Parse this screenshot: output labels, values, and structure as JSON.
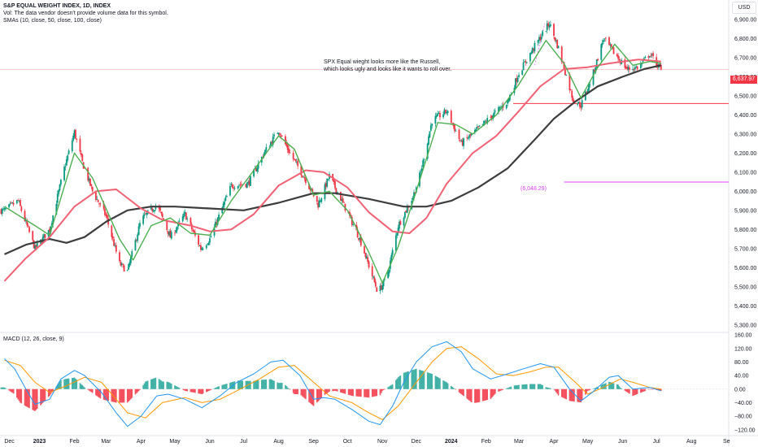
{
  "header": {
    "title": "S&P EQUAL WEIGHT INDEX, 1D, INDEX",
    "vol_note": "Vol: The data vendor doesn't provide volume data for this symbol.",
    "sma_label": "SMAs (10, close, 50, close, 100, close)"
  },
  "currency": "USD",
  "annotation": {
    "line1": "SPX Equal wieght looks more like the Russell,",
    "line2": "which looks ugly and looks like it wants to roll over."
  },
  "last_price_tag": "6,637.97",
  "level_tag": "(6,048.29)",
  "macd_label": "MACD (12, 26, close, 9)",
  "colors": {
    "up": "#089981",
    "down": "#f23645",
    "sma10": "#4caf50",
    "sma50": "#f06274",
    "sma100": "#3d3d3d",
    "macd": "#2196f3",
    "signal": "#ff9800",
    "hist_pos": "#26a69a",
    "hist_neg": "#f23645",
    "level_line": "#e040fb",
    "support_line": "#f23645",
    "price_tag_bg": "#f23645"
  },
  "chart_data": [
    {
      "type": "candlestick",
      "title": "S&P EQUAL WEIGHT INDEX, 1D, INDEX",
      "x_ticks": [
        "Dec",
        "2023",
        "Feb",
        "Mar",
        "Apr",
        "May",
        "Jun",
        "Jul",
        "Aug",
        "Sep",
        "Oct",
        "Nov",
        "Dec",
        "2024",
        "Feb",
        "Mar",
        "Apr",
        "May",
        "Jun",
        "Jul",
        "Aug",
        "Se"
      ],
      "y_ticks": [
        "6,900.00",
        "6,800.00",
        "6,700.00",
        "6,600.00",
        "6,500.00",
        "6,400.00",
        "6,300.00",
        "6,200.00",
        "6,100.00",
        "6,000.00",
        "5,900.00",
        "5,800.00",
        "5,700.00",
        "5,600.00",
        "5,500.00",
        "5,400.00",
        "5,300.00"
      ],
      "ylim": [
        5265,
        6985
      ],
      "close_path": [
        [
          "2022-12-01",
          5900
        ],
        [
          "2022-12-13",
          5950
        ],
        [
          "2022-12-28",
          5700
        ],
        [
          "2023-01-10",
          5800
        ],
        [
          "2023-01-23",
          6120
        ],
        [
          "2023-02-01",
          6310
        ],
        [
          "2023-02-08",
          6150
        ],
        [
          "2023-02-17",
          6000
        ],
        [
          "2023-03-01",
          5870
        ],
        [
          "2023-03-13",
          5620
        ],
        [
          "2023-03-20",
          5580
        ],
        [
          "2023-04-01",
          5850
        ],
        [
          "2023-04-15",
          5930
        ],
        [
          "2023-04-27",
          5760
        ],
        [
          "2023-05-10",
          5880
        ],
        [
          "2023-05-24",
          5700
        ],
        [
          "2023-06-01",
          5750
        ],
        [
          "2023-06-20",
          6030
        ],
        [
          "2023-07-05",
          6040
        ],
        [
          "2023-07-20",
          6210
        ],
        [
          "2023-08-01",
          6320
        ],
        [
          "2023-08-10",
          6210
        ],
        [
          "2023-08-25",
          6060
        ],
        [
          "2023-09-05",
          5930
        ],
        [
          "2023-09-15",
          6080
        ],
        [
          "2023-10-01",
          5890
        ],
        [
          "2023-10-12",
          5750
        ],
        [
          "2023-10-20",
          5610
        ],
        [
          "2023-10-28",
          5470
        ],
        [
          "2023-11-05",
          5550
        ],
        [
          "2023-11-15",
          5820
        ],
        [
          "2023-11-28",
          5970
        ],
        [
          "2023-12-05",
          6100
        ],
        [
          "2023-12-15",
          6370
        ],
        [
          "2023-12-28",
          6420
        ],
        [
          "2024-01-10",
          6250
        ],
        [
          "2024-01-22",
          6310
        ],
        [
          "2024-02-05",
          6390
        ],
        [
          "2024-02-20",
          6470
        ],
        [
          "2024-03-01",
          6620
        ],
        [
          "2024-03-15",
          6760
        ],
        [
          "2024-03-28",
          6880
        ],
        [
          "2024-04-05",
          6750
        ],
        [
          "2024-04-18",
          6480
        ],
        [
          "2024-04-25",
          6450
        ],
        [
          "2024-05-05",
          6600
        ],
        [
          "2024-05-15",
          6800
        ],
        [
          "2024-05-25",
          6720
        ],
        [
          "2024-06-05",
          6640
        ],
        [
          "2024-06-15",
          6650
        ],
        [
          "2024-06-25",
          6720
        ],
        [
          "2024-07-05",
          6638
        ]
      ],
      "sma10": [
        [
          "2022-12-01",
          5920
        ],
        [
          "2022-12-28",
          5820
        ],
        [
          "2023-01-10",
          5770
        ],
        [
          "2023-02-01",
          6200
        ],
        [
          "2023-02-17",
          6070
        ],
        [
          "2023-03-13",
          5750
        ],
        [
          "2023-03-25",
          5640
        ],
        [
          "2023-04-10",
          5820
        ],
        [
          "2023-04-27",
          5860
        ],
        [
          "2023-05-15",
          5780
        ],
        [
          "2023-06-01",
          5770
        ],
        [
          "2023-06-20",
          5950
        ],
        [
          "2023-07-10",
          6110
        ],
        [
          "2023-08-01",
          6290
        ],
        [
          "2023-08-15",
          6220
        ],
        [
          "2023-09-01",
          5980
        ],
        [
          "2023-09-15",
          6000
        ],
        [
          "2023-10-01",
          5900
        ],
        [
          "2023-10-20",
          5680
        ],
        [
          "2023-11-01",
          5520
        ],
        [
          "2023-11-15",
          5710
        ],
        [
          "2023-12-01",
          6000
        ],
        [
          "2023-12-20",
          6360
        ],
        [
          "2024-01-05",
          6350
        ],
        [
          "2024-01-20",
          6300
        ],
        [
          "2024-02-10",
          6400
        ],
        [
          "2024-03-01",
          6560
        ],
        [
          "2024-03-25",
          6790
        ],
        [
          "2024-04-10",
          6670
        ],
        [
          "2024-04-25",
          6490
        ],
        [
          "2024-05-10",
          6650
        ],
        [
          "2024-05-25",
          6770
        ],
        [
          "2024-06-10",
          6660
        ],
        [
          "2024-06-25",
          6680
        ],
        [
          "2024-07-05",
          6670
        ]
      ],
      "sma50": [
        [
          "2022-12-01",
          5530
        ],
        [
          "2022-12-20",
          5650
        ],
        [
          "2023-01-10",
          5760
        ],
        [
          "2023-02-01",
          5920
        ],
        [
          "2023-02-20",
          6000
        ],
        [
          "2023-03-10",
          6010
        ],
        [
          "2023-04-01",
          5910
        ],
        [
          "2023-04-20",
          5850
        ],
        [
          "2023-05-15",
          5820
        ],
        [
          "2023-06-01",
          5790
        ],
        [
          "2023-06-20",
          5800
        ],
        [
          "2023-07-10",
          5880
        ],
        [
          "2023-08-01",
          6030
        ],
        [
          "2023-08-25",
          6110
        ],
        [
          "2023-09-10",
          6100
        ],
        [
          "2023-10-01",
          6020
        ],
        [
          "2023-10-20",
          5890
        ],
        [
          "2023-11-10",
          5790
        ],
        [
          "2023-11-25",
          5780
        ],
        [
          "2023-12-10",
          5860
        ],
        [
          "2023-12-28",
          6040
        ],
        [
          "2024-01-20",
          6200
        ],
        [
          "2024-02-10",
          6290
        ],
        [
          "2024-03-01",
          6420
        ],
        [
          "2024-03-20",
          6550
        ],
        [
          "2024-04-10",
          6640
        ],
        [
          "2024-05-01",
          6650
        ],
        [
          "2024-05-20",
          6670
        ],
        [
          "2024-06-15",
          6690
        ],
        [
          "2024-07-05",
          6680
        ]
      ],
      "sma100": [
        [
          "2022-12-01",
          5670
        ],
        [
          "2022-12-20",
          5720
        ],
        [
          "2023-01-10",
          5750
        ],
        [
          "2023-01-25",
          5730
        ],
        [
          "2023-02-10",
          5760
        ],
        [
          "2023-03-01",
          5840
        ],
        [
          "2023-03-20",
          5900
        ],
        [
          "2023-04-10",
          5920
        ],
        [
          "2023-05-01",
          5920
        ],
        [
          "2023-06-01",
          5910
        ],
        [
          "2023-07-01",
          5900
        ],
        [
          "2023-08-01",
          5940
        ],
        [
          "2023-09-01",
          5990
        ],
        [
          "2023-09-20",
          5990
        ],
        [
          "2023-10-20",
          5960
        ],
        [
          "2023-11-20",
          5920
        ],
        [
          "2023-12-10",
          5920
        ],
        [
          "2024-01-01",
          5950
        ],
        [
          "2024-01-25",
          6020
        ],
        [
          "2024-02-20",
          6120
        ],
        [
          "2024-03-15",
          6270
        ],
        [
          "2024-04-01",
          6380
        ],
        [
          "2024-04-20",
          6470
        ],
        [
          "2024-05-10",
          6550
        ],
        [
          "2024-06-01",
          6600
        ],
        [
          "2024-06-20",
          6640
        ],
        [
          "2024-07-05",
          6660
        ]
      ],
      "last_close": 6637.97,
      "horizontal_levels": [
        6048.29,
        6460
      ]
    },
    {
      "type": "line",
      "title": "MACD (12, 26, close, 9)",
      "y_ticks": [
        "160.00",
        "120.00",
        "80.00",
        "40.00",
        "0.00",
        "−40.00",
        "−80.00",
        "−120.00"
      ],
      "ylim": [
        -135,
        165
      ],
      "series": [
        {
          "name": "MACD",
          "points": [
            [
              "2022-12-01",
              90
            ],
            [
              "2022-12-10",
              60
            ],
            [
              "2022-12-20",
              0
            ],
            [
              "2022-12-28",
              -45
            ],
            [
              "2023-01-10",
              -30
            ],
            [
              "2023-01-20",
              30
            ],
            [
              "2023-02-01",
              55
            ],
            [
              "2023-02-10",
              40
            ],
            [
              "2023-02-25",
              -10
            ],
            [
              "2023-03-10",
              -70
            ],
            [
              "2023-03-20",
              -110
            ],
            [
              "2023-04-01",
              -80
            ],
            [
              "2023-04-15",
              -20
            ],
            [
              "2023-04-25",
              -15
            ],
            [
              "2023-05-10",
              -30
            ],
            [
              "2023-05-25",
              -55
            ],
            [
              "2023-06-10",
              -20
            ],
            [
              "2023-06-25",
              20
            ],
            [
              "2023-07-10",
              45
            ],
            [
              "2023-07-25",
              80
            ],
            [
              "2023-08-05",
              85
            ],
            [
              "2023-08-20",
              40
            ],
            [
              "2023-09-01",
              -30
            ],
            [
              "2023-09-10",
              -25
            ],
            [
              "2023-09-20",
              -30
            ],
            [
              "2023-10-05",
              -60
            ],
            [
              "2023-10-20",
              -95
            ],
            [
              "2023-10-30",
              -105
            ],
            [
              "2023-11-10",
              -50
            ],
            [
              "2023-11-20",
              20
            ],
            [
              "2023-12-01",
              80
            ],
            [
              "2023-12-15",
              125
            ],
            [
              "2023-12-28",
              140
            ],
            [
              "2024-01-10",
              110
            ],
            [
              "2024-01-20",
              60
            ],
            [
              "2024-02-05",
              30
            ],
            [
              "2024-02-20",
              45
            ],
            [
              "2024-03-05",
              60
            ],
            [
              "2024-03-20",
              75
            ],
            [
              "2024-04-01",
              65
            ],
            [
              "2024-04-15",
              0
            ],
            [
              "2024-04-25",
              -35
            ],
            [
              "2024-05-05",
              -10
            ],
            [
              "2024-05-20",
              35
            ],
            [
              "2024-05-28",
              40
            ],
            [
              "2024-06-10",
              0
            ],
            [
              "2024-06-25",
              5
            ],
            [
              "2024-07-05",
              -5
            ]
          ]
        },
        {
          "name": "Signal",
          "points": [
            [
              "2022-12-01",
              85
            ],
            [
              "2022-12-15",
              70
            ],
            [
              "2022-12-28",
              20
            ],
            [
              "2023-01-10",
              -10
            ],
            [
              "2023-01-25",
              10
            ],
            [
              "2023-02-10",
              35
            ],
            [
              "2023-02-25",
              20
            ],
            [
              "2023-03-10",
              -30
            ],
            [
              "2023-03-20",
              -70
            ],
            [
              "2023-04-05",
              -85
            ],
            [
              "2023-04-20",
              -40
            ],
            [
              "2023-05-10",
              -25
            ],
            [
              "2023-05-25",
              -40
            ],
            [
              "2023-06-10",
              -30
            ],
            [
              "2023-06-25",
              -5
            ],
            [
              "2023-07-15",
              30
            ],
            [
              "2023-08-01",
              65
            ],
            [
              "2023-08-15",
              70
            ],
            [
              "2023-09-01",
              20
            ],
            [
              "2023-09-15",
              -20
            ],
            [
              "2023-10-05",
              -40
            ],
            [
              "2023-10-20",
              -70
            ],
            [
              "2023-11-01",
              -90
            ],
            [
              "2023-11-15",
              -50
            ],
            [
              "2023-12-01",
              20
            ],
            [
              "2023-12-15",
              80
            ],
            [
              "2023-12-28",
              120
            ],
            [
              "2024-01-10",
              125
            ],
            [
              "2024-01-25",
              90
            ],
            [
              "2024-02-10",
              45
            ],
            [
              "2024-02-25",
              40
            ],
            [
              "2024-03-10",
              50
            ],
            [
              "2024-03-25",
              65
            ],
            [
              "2024-04-05",
              65
            ],
            [
              "2024-04-20",
              20
            ],
            [
              "2024-05-01",
              -15
            ],
            [
              "2024-05-15",
              5
            ],
            [
              "2024-05-30",
              30
            ],
            [
              "2024-06-10",
              20
            ],
            [
              "2024-06-25",
              5
            ],
            [
              "2024-07-05",
              0
            ]
          ]
        }
      ]
    }
  ]
}
